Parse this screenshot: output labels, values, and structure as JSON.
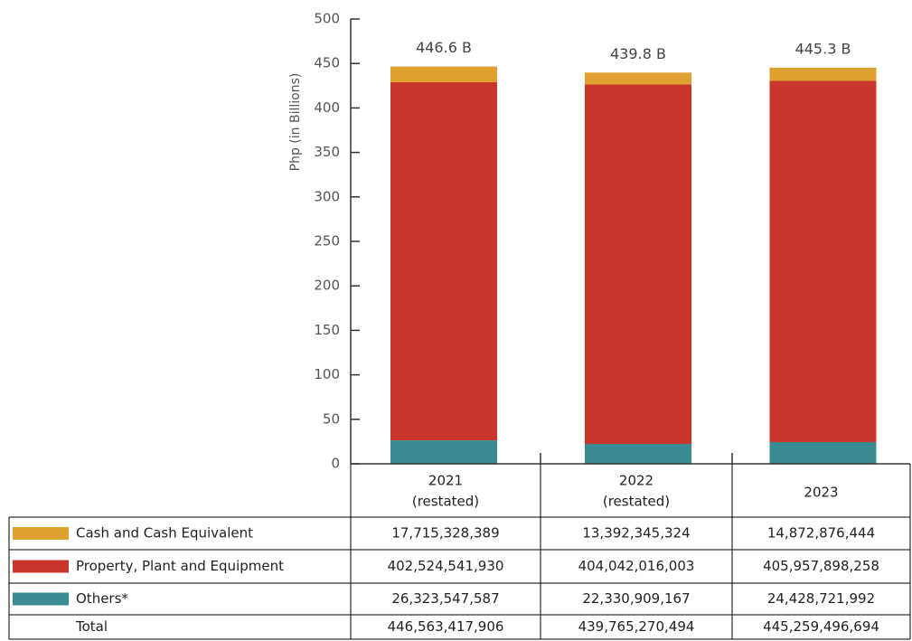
{
  "chart_data": {
    "type": "stacked_bar",
    "y_label": "Php (in Billions)",
    "categories": [
      "2021",
      "2022",
      "2023"
    ],
    "category_sublabels": [
      "(restated)",
      "(restated)",
      null
    ],
    "ylim": [
      0,
      500
    ],
    "yticks": [
      0,
      50,
      100,
      150,
      200,
      250,
      300,
      350,
      400,
      450,
      500
    ],
    "series": [
      {
        "name": "Others*",
        "color": "#3a8c92",
        "values": [
          26.323547587,
          22.330909167,
          24.428721992
        ],
        "value_labels": [
          "26,323,547,587",
          "22,330,909,167",
          "24,428,721,992"
        ]
      },
      {
        "name": "Property, Plant and Equipment",
        "color": "#c9362b",
        "values": [
          402.52454193,
          404.042016003,
          405.957898258
        ],
        "value_labels": [
          "402,524,541,930",
          "404,042,016,003",
          "405,957,898,258"
        ]
      },
      {
        "name": "Cash and Cash Equivalent",
        "color": "#e0a030",
        "values": [
          17.715328389,
          13.392345324,
          14.872876444
        ],
        "value_labels": [
          "17,715,328,389",
          "13,392,345,324",
          "14,872,876,444"
        ]
      }
    ],
    "totals": {
      "name": "Total",
      "values": [
        446.563417906,
        439.765270494,
        445.259496694
      ],
      "value_labels": [
        "446,563,417,906",
        "439,765,270,494",
        "445,259,496,694"
      ],
      "top_labels": [
        "446.6 B",
        "439.8 B",
        "445.3 B"
      ]
    },
    "table_order": [
      2,
      1,
      0
    ]
  }
}
